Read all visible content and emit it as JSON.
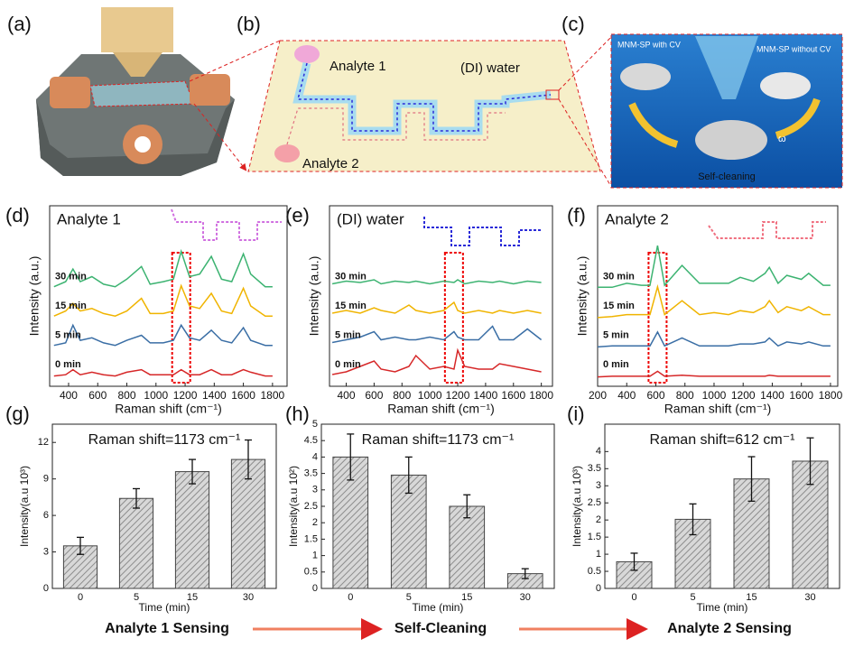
{
  "figure": {
    "panel_labels": [
      "(a)",
      "(b)",
      "(c)",
      "(d)",
      "(e)",
      "(f)",
      "(g)",
      "(h)",
      "(i)"
    ],
    "b_labels": [
      "Analyte 1",
      "(DI) water",
      "Analyte 2"
    ],
    "c_labels": [
      "MNM-SP with CV",
      "MNM-SP without CV",
      "Self-cleaning",
      "ω"
    ],
    "flow": [
      "Analyte 1 Sensing",
      "Self-Cleaning",
      "Analyte 2 Sensing"
    ]
  },
  "chart_data": [
    {
      "type": "line",
      "title": "Analyte 1",
      "x_label": "Raman shift (cm⁻¹)",
      "y_label": "Intensity (a.u.)",
      "x": [
        300,
        380,
        430,
        480,
        560,
        640,
        720,
        800,
        900,
        960,
        1050,
        1120,
        1173,
        1230,
        1300,
        1380,
        1450,
        1520,
        1600,
        1650,
        1750,
        1800
      ],
      "xlim": [
        270,
        1900
      ],
      "xticks": [
        400,
        600,
        800,
        1000,
        1200,
        1400,
        1600,
        1800
      ],
      "highlight": 1173,
      "series": [
        {
          "name": "30 min",
          "color": "#3cb371",
          "values": [
            0.1,
            0.3,
            0.8,
            0.3,
            0.5,
            0.2,
            0.1,
            0.4,
            0.9,
            0.2,
            0.3,
            0.4,
            1.5,
            0.5,
            0.6,
            1.3,
            0.4,
            0.3,
            1.4,
            0.6,
            0.1,
            0.1
          ]
        },
        {
          "name": "15 min",
          "color": "#f0b400",
          "values": [
            0.1,
            0.3,
            0.6,
            0.3,
            0.4,
            0.2,
            0.1,
            0.3,
            0.8,
            0.2,
            0.2,
            0.3,
            1.3,
            0.5,
            0.4,
            1.0,
            0.3,
            0.2,
            1.2,
            0.5,
            0.1,
            0.1
          ]
        },
        {
          "name": "5 min",
          "color": "#3a6ea5",
          "values": [
            0.1,
            0.2,
            0.9,
            0.3,
            0.4,
            0.2,
            0.1,
            0.3,
            0.5,
            0.2,
            0.2,
            0.3,
            0.9,
            0.4,
            0.3,
            0.7,
            0.3,
            0.2,
            0.8,
            0.3,
            0.1,
            0.1
          ]
        },
        {
          "name": "0 min",
          "color": "#d62728",
          "values": [
            0.05,
            0.1,
            0.3,
            0.1,
            0.2,
            0.1,
            0.05,
            0.2,
            0.3,
            0.1,
            0.1,
            0.1,
            0.3,
            0.1,
            0.1,
            0.3,
            0.1,
            0.1,
            0.3,
            0.2,
            0.05,
            0.05
          ]
        }
      ]
    },
    {
      "type": "line",
      "title": "(DI) water",
      "x_label": "Raman shift (cm⁻¹)",
      "y_label": "Intensity (a.u.)",
      "x": [
        300,
        400,
        500,
        600,
        650,
        750,
        850,
        900,
        1000,
        1100,
        1173,
        1200,
        1250,
        1350,
        1450,
        1500,
        1600,
        1700,
        1800
      ],
      "xlim": [
        280,
        1880
      ],
      "xticks": [
        400,
        600,
        800,
        1000,
        1200,
        1400,
        1600,
        1800
      ],
      "highlight": 1173,
      "series": [
        {
          "name": "30 min",
          "color": "#3cb371",
          "values": [
            0.2,
            0.3,
            0.25,
            0.35,
            0.2,
            0.3,
            0.25,
            0.3,
            0.2,
            0.3,
            0.25,
            0.35,
            0.2,
            0.3,
            0.25,
            0.3,
            0.2,
            0.3,
            0.25
          ]
        },
        {
          "name": "15 min",
          "color": "#f0b400",
          "values": [
            0.2,
            0.3,
            0.2,
            0.4,
            0.3,
            0.2,
            0.5,
            0.3,
            0.2,
            0.3,
            0.6,
            0.3,
            0.2,
            0.3,
            0.2,
            0.3,
            0.2,
            0.3,
            0.2
          ]
        },
        {
          "name": "5 min",
          "color": "#3a6ea5",
          "values": [
            0.2,
            0.3,
            0.4,
            0.6,
            0.3,
            0.4,
            0.3,
            0.3,
            0.4,
            0.3,
            0.6,
            0.4,
            0.3,
            0.3,
            0.8,
            0.3,
            0.3,
            0.7,
            0.3
          ]
        },
        {
          "name": "0 min",
          "color": "#d62728",
          "values": [
            0.1,
            0.2,
            0.4,
            0.6,
            0.3,
            0.2,
            0.4,
            0.8,
            0.3,
            0.4,
            0.3,
            1.0,
            0.4,
            0.3,
            0.3,
            0.5,
            0.4,
            0.3,
            0.2
          ]
        }
      ]
    },
    {
      "type": "line",
      "title": "Analyte 2",
      "x_label": "Raman shift (cm⁻¹)",
      "y_label": "Intensity (a.u.)",
      "x": [
        200,
        300,
        400,
        500,
        560,
        612,
        660,
        780,
        900,
        1000,
        1100,
        1180,
        1270,
        1350,
        1380,
        1440,
        1500,
        1600,
        1650,
        1750,
        1800
      ],
      "xlim": [
        200,
        1850
      ],
      "xticks": [
        200,
        400,
        600,
        800,
        1000,
        1200,
        1400,
        1600,
        1800
      ],
      "highlight": 612,
      "series": [
        {
          "name": "30 min",
          "color": "#3cb371",
          "values": [
            0.1,
            0.1,
            0.3,
            0.2,
            0.2,
            2.2,
            0.2,
            1.2,
            0.3,
            0.3,
            0.3,
            0.6,
            0.4,
            0.8,
            1.1,
            0.3,
            0.7,
            0.5,
            0.8,
            0.2,
            0.2
          ]
        },
        {
          "name": "15 min",
          "color": "#f0b400",
          "values": [
            0.05,
            0.1,
            0.2,
            0.2,
            0.2,
            1.6,
            0.2,
            0.9,
            0.2,
            0.3,
            0.2,
            0.4,
            0.3,
            0.6,
            0.9,
            0.3,
            0.6,
            0.4,
            0.6,
            0.2,
            0.2
          ]
        },
        {
          "name": "5 min",
          "color": "#3a6ea5",
          "values": [
            0.05,
            0.1,
            0.1,
            0.1,
            0.1,
            0.8,
            0.1,
            0.5,
            0.1,
            0.1,
            0.1,
            0.2,
            0.2,
            0.3,
            0.5,
            0.1,
            0.3,
            0.2,
            0.3,
            0.1,
            0.1
          ]
        },
        {
          "name": "0 min",
          "color": "#d62728",
          "values": [
            0.02,
            0.05,
            0.05,
            0.05,
            0.05,
            0.3,
            0.05,
            0.1,
            0.05,
            0.05,
            0.05,
            0.05,
            0.05,
            0.05,
            0.1,
            0.05,
            0.05,
            0.05,
            0.05,
            0.05,
            0.05
          ]
        }
      ]
    },
    {
      "type": "bar",
      "title": "Raman shift=1173 cm⁻¹",
      "x_label": "Time (min)",
      "y_label": "Intensity(a.u 10³)",
      "categories": [
        "0",
        "5",
        "15",
        "30"
      ],
      "values": [
        3.5,
        7.4,
        9.6,
        10.6
      ],
      "errors": [
        0.7,
        0.8,
        1.0,
        1.6
      ],
      "ylim": [
        0,
        13.5
      ],
      "yticks": [
        0,
        3,
        6,
        9,
        12
      ],
      "color": "#8c8c8c"
    },
    {
      "type": "bar",
      "title": "Raman shift=1173 cm⁻¹",
      "x_label": "Time (min)",
      "y_label": "Intensity(a.u 10²)",
      "categories": [
        "0",
        "5",
        "15",
        "30"
      ],
      "values": [
        4.0,
        3.45,
        2.5,
        0.45
      ],
      "errors": [
        0.7,
        0.55,
        0.35,
        0.15
      ],
      "ylim": [
        0,
        5
      ],
      "yticks": [
        0,
        0.5,
        1,
        1.5,
        2,
        2.5,
        3,
        3.5,
        4,
        4.5,
        5
      ],
      "color": "#8c8c8c"
    },
    {
      "type": "bar",
      "title": "Raman shift=612 cm⁻¹",
      "x_label": "Time (min)",
      "y_label": "Intensity(a.u 10³)",
      "categories": [
        "0",
        "5",
        "15",
        "30"
      ],
      "values": [
        0.78,
        2.02,
        3.2,
        3.72
      ],
      "errors": [
        0.25,
        0.45,
        0.65,
        0.68
      ],
      "ylim": [
        0,
        4.8
      ],
      "yticks": [
        0,
        0.5,
        1,
        1.5,
        2,
        2.5,
        3,
        3.5,
        4
      ],
      "color": "#8c8c8c"
    }
  ]
}
